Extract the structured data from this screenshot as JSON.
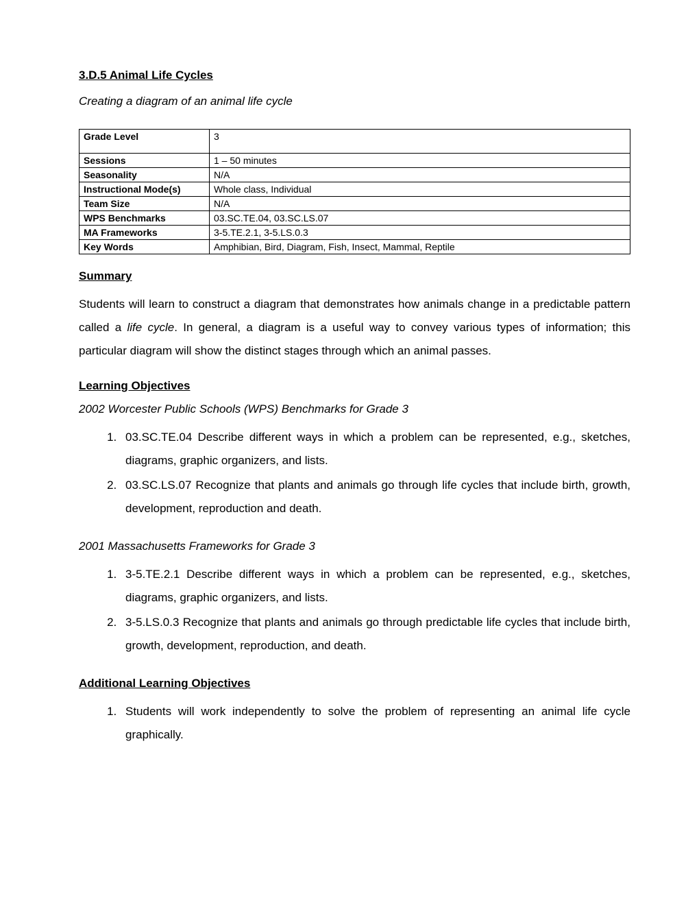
{
  "title": "3.D.5 Animal Life Cycles",
  "subtitle": "Creating a diagram of an animal life cycle",
  "info_table": {
    "rows": [
      {
        "label": "Grade Level",
        "value": "3",
        "tall": true
      },
      {
        "label": "Sessions",
        "value": "1 – 50 minutes",
        "tall": false
      },
      {
        "label": "Seasonality",
        "value": "N/A",
        "tall": false
      },
      {
        "label": "Instructional Mode(s)",
        "value": "Whole class, Individual",
        "tall": false
      },
      {
        "label": "Team Size",
        "value": "N/A",
        "tall": false
      },
      {
        "label": "WPS Benchmarks",
        "value": "03.SC.TE.04, 03.SC.LS.07",
        "tall": false
      },
      {
        "label": "MA Frameworks",
        "value": "3-5.TE.2.1, 3-5.LS.0.3",
        "tall": false
      },
      {
        "label": "Key Words",
        "value": "Amphibian, Bird, Diagram, Fish, Insect, Mammal, Reptile",
        "tall": false
      }
    ]
  },
  "summary": {
    "heading": "Summary",
    "text_before": "Students will learn to construct a diagram that demonstrates how animals change in a predictable pattern called a ",
    "italic_term": "life cycle",
    "text_after": ". In general, a diagram is a useful way to convey various types of information; this particular diagram will show the distinct stages through which an animal passes."
  },
  "learning_objectives": {
    "heading": "Learning Objectives",
    "groups": [
      {
        "subheading": "2002 Worcester Public Schools (WPS) Benchmarks for Grade 3",
        "items": [
          "03.SC.TE.04 Describe different ways in which a problem can be represented, e.g., sketches, diagrams, graphic organizers, and lists.",
          "03.SC.LS.07 Recognize that plants and animals go through life cycles that include birth, growth, development, reproduction and death."
        ]
      },
      {
        "subheading": "2001 Massachusetts Frameworks for Grade 3",
        "items": [
          "3-5.TE.2.1 Describe different ways in which a problem can be represented, e.g., sketches, diagrams, graphic organizers, and lists.",
          "3-5.LS.0.3 Recognize that plants and animals go through predictable life cycles that include birth, growth, development, reproduction, and death."
        ]
      }
    ]
  },
  "additional_objectives": {
    "heading": "Additional Learning Objectives",
    "items": [
      "Students will work independently to solve the problem of representing an animal life cycle graphically."
    ]
  }
}
